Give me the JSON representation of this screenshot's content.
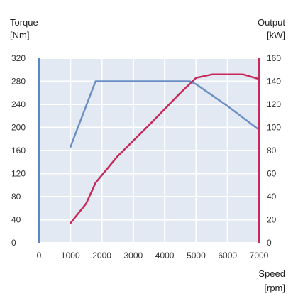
{
  "chart_data": {
    "type": "line",
    "x_axis": {
      "label_top": "Speed",
      "label_bottom": "[rpm]",
      "ticks": [
        0,
        1000,
        2000,
        3000,
        4000,
        5000,
        6000,
        7000
      ],
      "range": [
        0,
        7000
      ]
    },
    "y_left": {
      "label_top": "Torque",
      "label_bottom": "[Nm]",
      "ticks": [
        0,
        40,
        80,
        120,
        160,
        200,
        240,
        280,
        320
      ],
      "range": [
        0,
        320
      ]
    },
    "y_right": {
      "label_top": "Output",
      "label_bottom": "[kW]",
      "ticks": [
        0,
        20,
        40,
        60,
        80,
        100,
        120,
        140,
        160
      ],
      "range": [
        0,
        160
      ]
    },
    "grid": true,
    "series": [
      {
        "axis": "left",
        "color": "#6b8fc4",
        "points": [
          [
            1000,
            166
          ],
          [
            1800,
            280
          ],
          [
            4800,
            280
          ],
          [
            5000,
            275
          ],
          [
            6000,
            237
          ],
          [
            7000,
            196
          ]
        ]
      },
      {
        "axis": "right",
        "color": "#c8285a",
        "points": [
          [
            1000,
            17
          ],
          [
            1500,
            34
          ],
          [
            1800,
            52
          ],
          [
            2500,
            75
          ],
          [
            3500,
            102
          ],
          [
            4500,
            130
          ],
          [
            5000,
            143
          ],
          [
            5500,
            146
          ],
          [
            6000,
            146
          ],
          [
            6500,
            146
          ],
          [
            7000,
            142
          ]
        ]
      }
    ]
  }
}
